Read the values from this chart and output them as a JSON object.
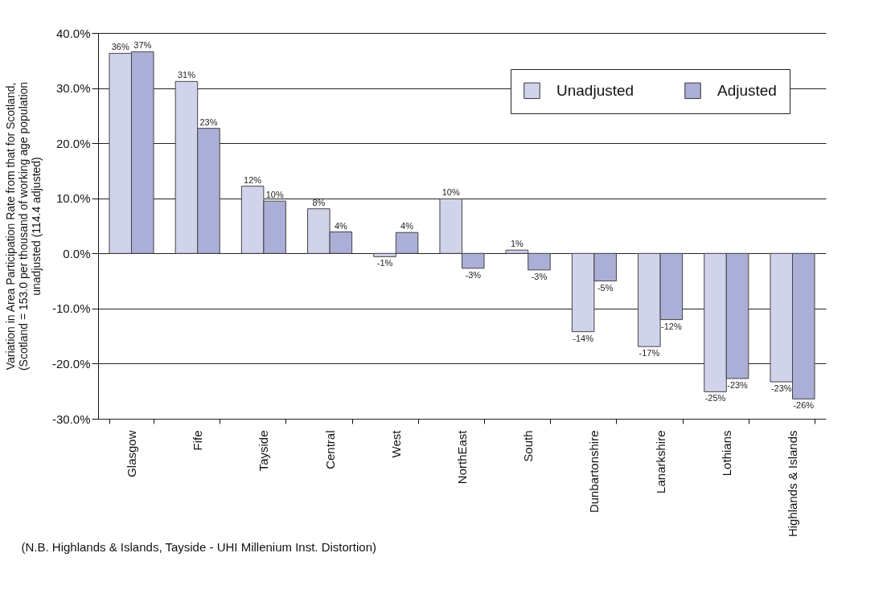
{
  "chart_data": {
    "type": "bar",
    "ylabel": "Variation in Area Participation Rate from that for Scotland,\n(Scotland = 153.0 per thousand of working age population\nunadjusted (114.4 adjusted)",
    "categories": [
      "Glasgow",
      "Fife",
      "Tayside",
      "Central",
      "West",
      "NorthEast",
      "South",
      "Dunbartonshire",
      "Lanarkshire",
      "Lothians",
      "Highlands & Islands"
    ],
    "series": [
      {
        "name": "Unadjusted",
        "color": "#d0d3ea",
        "values": [
          36.3,
          31.2,
          12.2,
          8.1,
          -0.6,
          9.9,
          0.6,
          -14.2,
          -16.9,
          -25.1,
          -23.3
        ],
        "value_labels": [
          "36%",
          "31%",
          "12%",
          "8%",
          "-1%",
          "10%",
          "1%",
          "-14%",
          "-17%",
          "-25%",
          "-23%"
        ]
      },
      {
        "name": "Adjusted",
        "color": "#abaed6",
        "values": [
          36.6,
          22.7,
          9.5,
          3.9,
          3.8,
          -2.7,
          -3.0,
          -5.0,
          -12.0,
          -22.7,
          -26.4
        ],
        "value_labels": [
          "37%",
          "23%",
          "10%",
          "4%",
          "4%",
          "-3%",
          "-3%",
          "-5%",
          "-12%",
          "-23%",
          "-26%"
        ]
      }
    ],
    "ylim": [
      -30,
      40
    ],
    "yticks": [
      {
        "value": -30,
        "label": "-30.0%"
      },
      {
        "value": -20,
        "label": "-20.0%"
      },
      {
        "value": -10,
        "label": "-10.0%"
      },
      {
        "value": 0,
        "label": "0.0%"
      },
      {
        "value": 10,
        "label": "10.0%"
      },
      {
        "value": 20,
        "label": "20.0%"
      },
      {
        "value": 30,
        "label": "30.0%"
      },
      {
        "value": 40,
        "label": "40.0%"
      }
    ],
    "grid": "y",
    "legend": "top right",
    "annotations": [
      "(N.B. Highlands & Islands, Tayside - UHI Millenium Inst. Distortion)"
    ]
  }
}
